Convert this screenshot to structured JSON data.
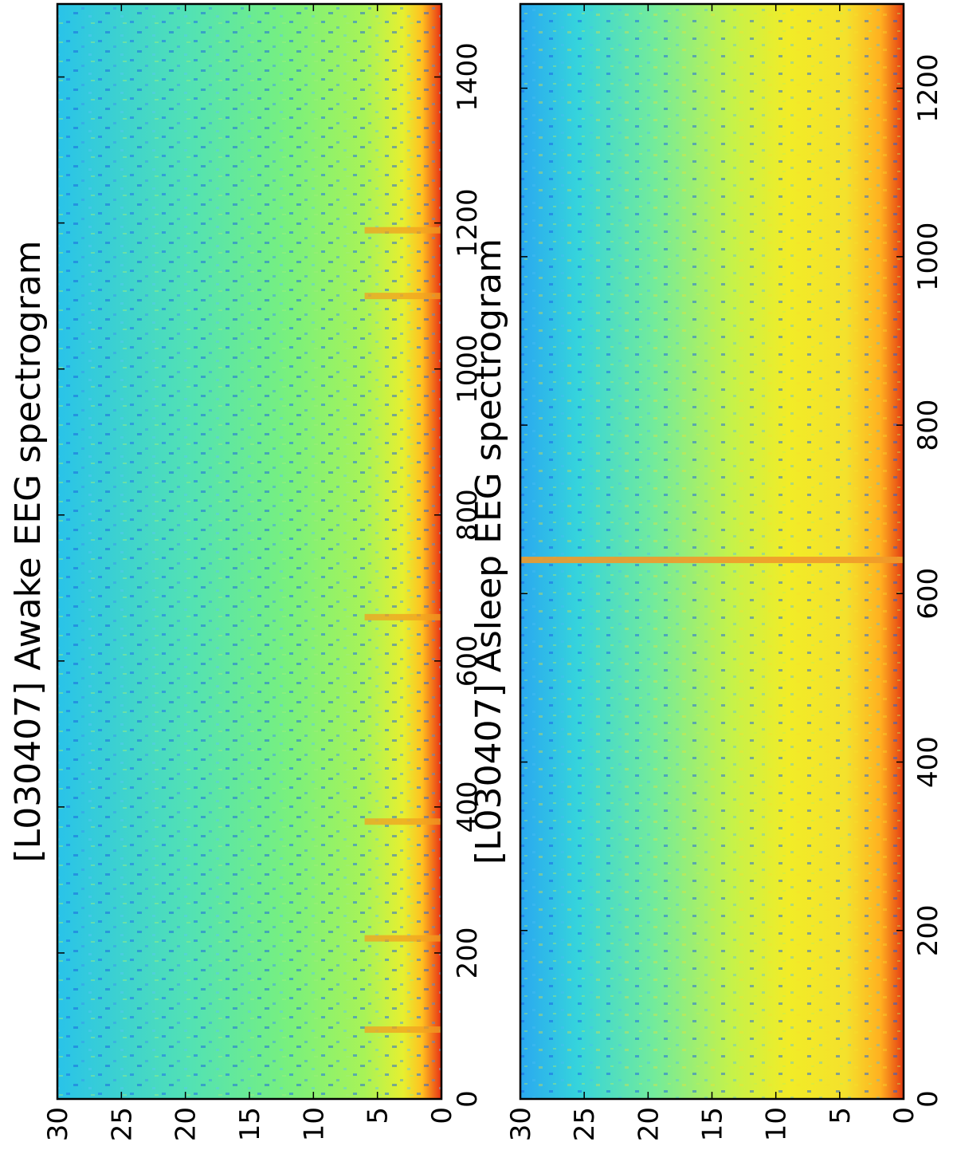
{
  "chart_data": [
    {
      "type": "heatmap",
      "title": "[L030407] Awake EEG spectrogram",
      "xlabel": "",
      "ylabel": "",
      "xlim": [
        0,
        1500
      ],
      "ylim": [
        0,
        30
      ],
      "xticks": [
        0,
        200,
        400,
        600,
        800,
        1000,
        1200,
        1400
      ],
      "yticks": [
        0,
        5,
        10,
        15,
        20,
        25,
        30
      ],
      "colormap": "jet",
      "rotation": "figure rotated 90 degrees clockwise (time runs top to bottom)",
      "summary": {
        "low_freq_band_power": "high (red/orange at 0-2)",
        "mid_high_freq_power": "moderate (cyan/green)",
        "bright_time_stripes": [
          95,
          220,
          380,
          660,
          1100,
          1190
        ]
      }
    },
    {
      "type": "heatmap",
      "title": "[L030407] Asleep EEG spectrogram",
      "xlabel": "",
      "ylabel": "",
      "xlim": [
        0,
        1300
      ],
      "ylim": [
        0,
        30
      ],
      "xticks": [
        0,
        200,
        400,
        600,
        800,
        1000,
        1200
      ],
      "yticks": [
        0,
        5,
        10,
        15,
        20,
        25,
        30
      ],
      "colormap": "jet",
      "rotation": "figure rotated 90 degrees clockwise (time runs top to bottom)",
      "summary": {
        "low_freq_band_power": "high (red/orange at 0-2)",
        "mid_freq_power": "elevated (yellow/green at 5-15)",
        "high_freq_power": "lower (cyan/blue at 20-30)",
        "bright_time_stripes": [
          640
        ]
      }
    }
  ],
  "colors": {
    "jet_low": "#0000ff",
    "jet_mid": "#00ffff",
    "jet_high": "#ff0000",
    "axis": "#000000"
  }
}
